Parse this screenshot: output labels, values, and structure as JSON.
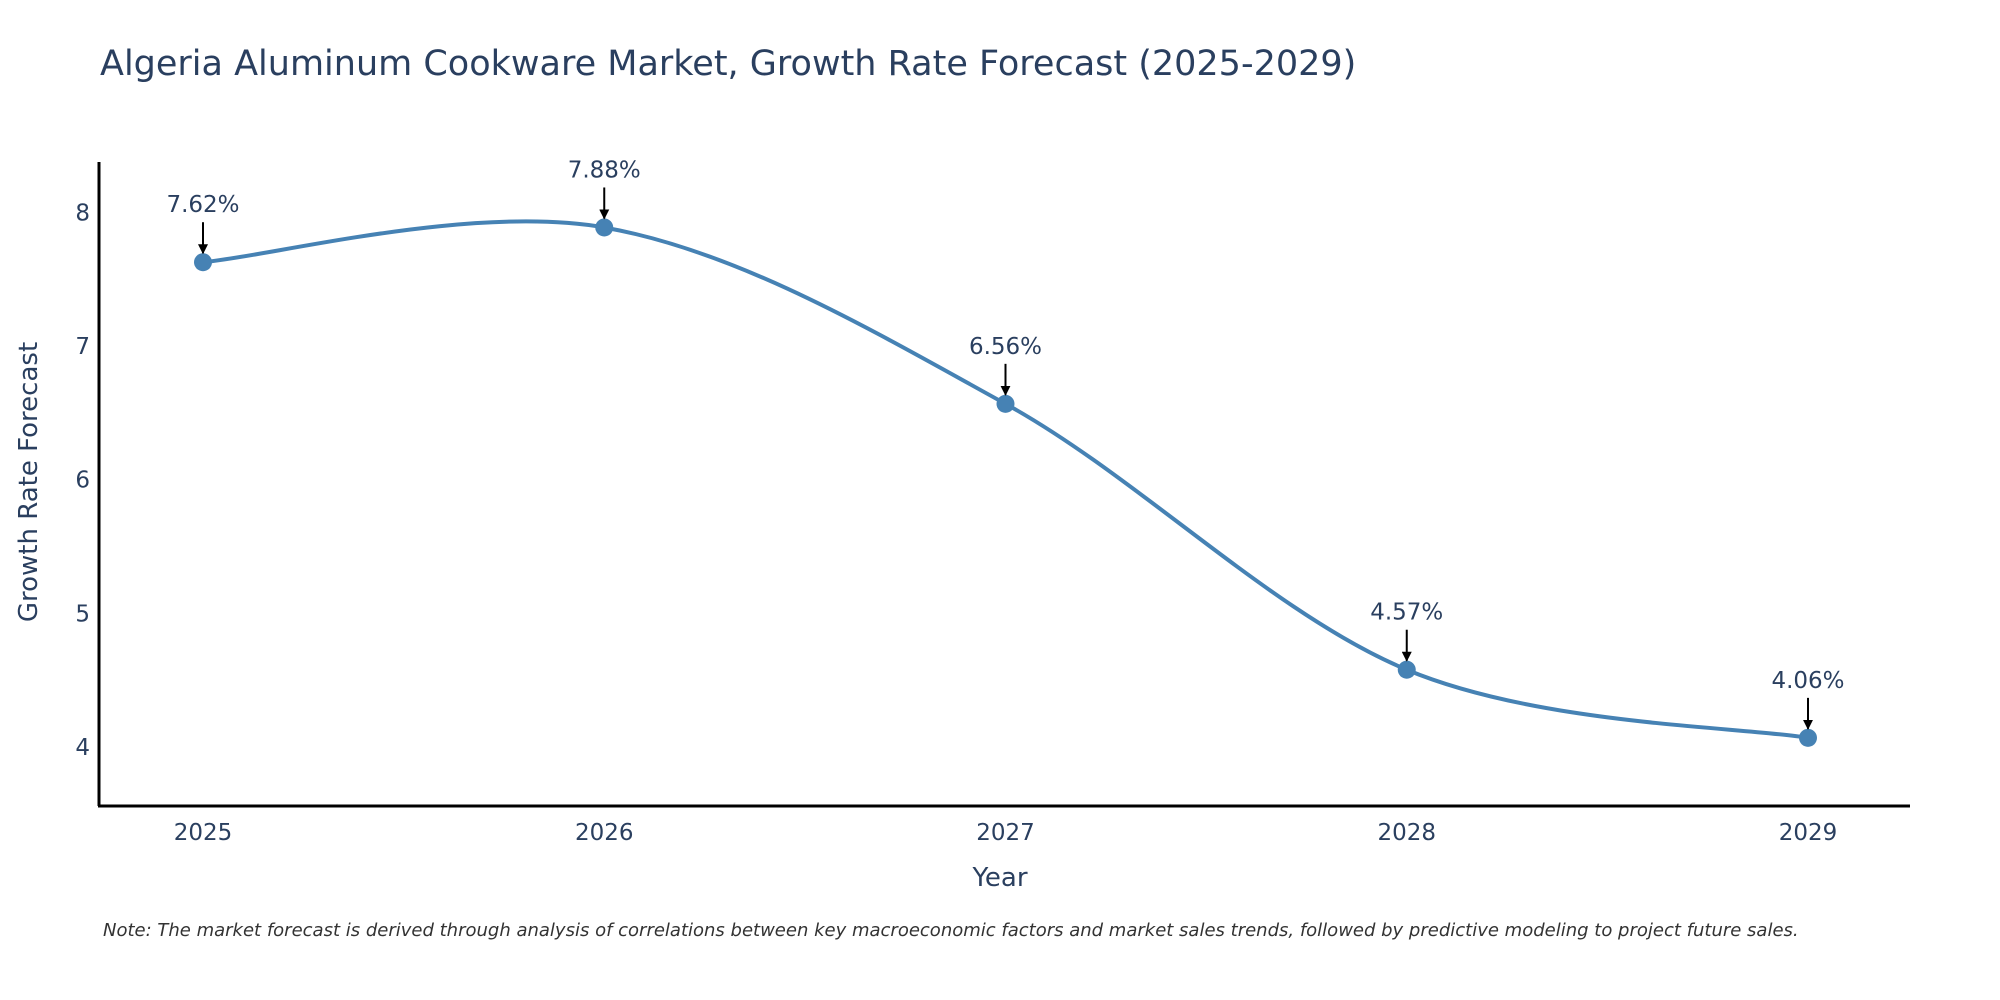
{
  "chart_data": {
    "type": "line",
    "title": "Algeria Aluminum Cookware Market, Growth Rate Forecast (2025-2029)",
    "xlabel": "Year",
    "ylabel": "Growth Rate Forecast",
    "categories": [
      "2025",
      "2026",
      "2027",
      "2028",
      "2029"
    ],
    "values": [
      7.62,
      7.88,
      6.56,
      4.57,
      4.06
    ],
    "data_labels": [
      "7.62%",
      "7.88%",
      "6.56%",
      "4.57%",
      "4.06%"
    ],
    "yticks": [
      4,
      5,
      6,
      7,
      8
    ],
    "ylim": [
      3.55,
      8.37
    ],
    "grid": false,
    "line_shape": "spline",
    "colors": {
      "line": "#4682b4",
      "marker": "#4682b4",
      "axis": "#000000",
      "tick_text": "#2a3f5f",
      "annotation_text": "#2a3f5f",
      "arrow": "#000000"
    }
  },
  "footnote": "Note: The market forecast is derived through analysis of correlations between key macroeconomic factors and market sales trends, followed by predictive modeling to project future sales."
}
